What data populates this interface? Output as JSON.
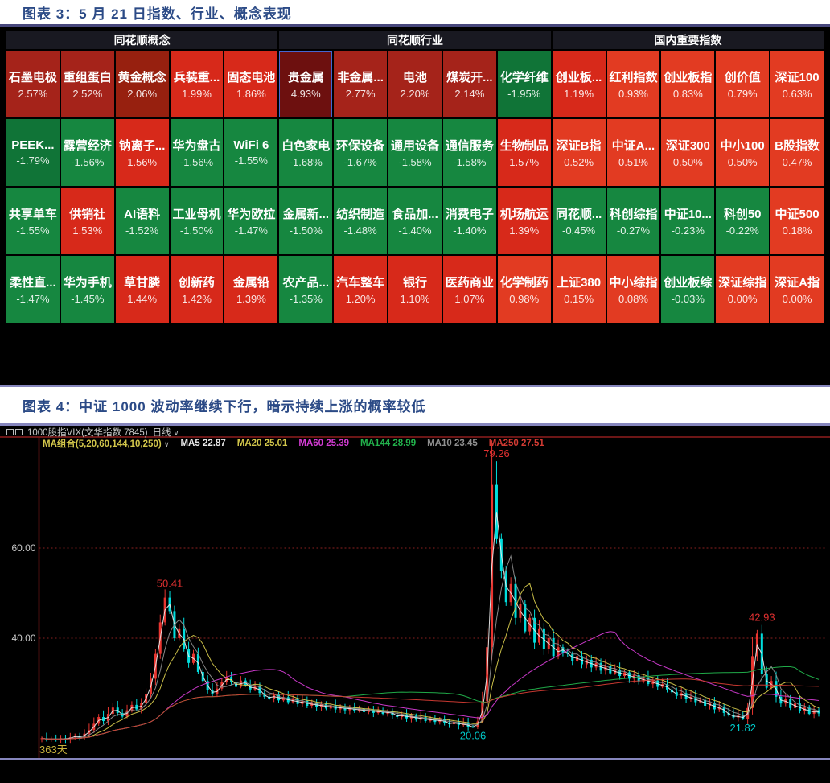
{
  "figure3": {
    "title": "图表 3：5 月 21 日指数、行业、概念表现"
  },
  "figure4": {
    "title": "图表 4：中证 1000 波动率继续下行，暗示持续上涨的概率较低"
  },
  "chart_data": [
    {
      "type": "heatmap",
      "groups": [
        {
          "header": "同花顺概念",
          "cells": [
            {
              "name": "石墨电极",
              "value": "2.57%",
              "color": "#a5231a"
            },
            {
              "name": "重组蛋白",
              "value": "2.52%",
              "color": "#a5231a"
            },
            {
              "name": "黄金概念",
              "value": "2.06%",
              "color": "#97200f"
            },
            {
              "name": "兵装重...",
              "value": "1.99%",
              "color": "#d7291a"
            },
            {
              "name": "固态电池",
              "value": "1.86%",
              "color": "#d7291a"
            },
            {
              "name": "PEEK...",
              "value": "-1.79%",
              "color": "#107437"
            },
            {
              "name": "露营经济",
              "value": "-1.56%",
              "color": "#168740"
            },
            {
              "name": "钠离子...",
              "value": "1.56%",
              "color": "#d7291a"
            },
            {
              "name": "华为盘古",
              "value": "-1.56%",
              "color": "#168740"
            },
            {
              "name": "WiFi 6",
              "value": "-1.55%",
              "color": "#168740"
            },
            {
              "name": "共享单车",
              "value": "-1.55%",
              "color": "#168740"
            },
            {
              "name": "供销社",
              "value": "1.53%",
              "color": "#d7291a"
            },
            {
              "name": "AI语料",
              "value": "-1.52%",
              "color": "#168740"
            },
            {
              "name": "工业母机",
              "value": "-1.50%",
              "color": "#168740"
            },
            {
              "name": "华为欧拉",
              "value": "-1.47%",
              "color": "#168740"
            },
            {
              "name": "柔性直...",
              "value": "-1.47%",
              "color": "#168740"
            },
            {
              "name": "华为手机",
              "value": "-1.45%",
              "color": "#168740"
            },
            {
              "name": "草甘膦",
              "value": "1.44%",
              "color": "#d7291a"
            },
            {
              "name": "创新药",
              "value": "1.42%",
              "color": "#d7291a"
            },
            {
              "name": "金属铅",
              "value": "1.39%",
              "color": "#d7291a"
            }
          ]
        },
        {
          "header": "同花顺行业",
          "cells": [
            {
              "name": "贵金属",
              "value": "4.93%",
              "color": "#6d100f",
              "selected": true
            },
            {
              "name": "非金属...",
              "value": "2.77%",
              "color": "#a5231a"
            },
            {
              "name": "电池",
              "value": "2.20%",
              "color": "#a5231a"
            },
            {
              "name": "煤炭开...",
              "value": "2.14%",
              "color": "#a5231a"
            },
            {
              "name": "化学纤维",
              "value": "-1.95%",
              "color": "#107437"
            },
            {
              "name": "白色家电",
              "value": "-1.68%",
              "color": "#168740"
            },
            {
              "name": "环保设备",
              "value": "-1.67%",
              "color": "#168740"
            },
            {
              "name": "通用设备",
              "value": "-1.58%",
              "color": "#168740"
            },
            {
              "name": "通信服务",
              "value": "-1.58%",
              "color": "#168740"
            },
            {
              "name": "生物制品",
              "value": "1.57%",
              "color": "#d7291a"
            },
            {
              "name": "金属新...",
              "value": "-1.50%",
              "color": "#168740"
            },
            {
              "name": "纺织制造",
              "value": "-1.48%",
              "color": "#168740"
            },
            {
              "name": "食品加...",
              "value": "-1.40%",
              "color": "#168740"
            },
            {
              "name": "消费电子",
              "value": "-1.40%",
              "color": "#168740"
            },
            {
              "name": "机场航运",
              "value": "1.39%",
              "color": "#d7291a"
            },
            {
              "name": "农产品...",
              "value": "-1.35%",
              "color": "#168740"
            },
            {
              "name": "汽车整车",
              "value": "1.20%",
              "color": "#d7291a"
            },
            {
              "name": "银行",
              "value": "1.10%",
              "color": "#d7291a"
            },
            {
              "name": "医药商业",
              "value": "1.07%",
              "color": "#d7291a"
            },
            {
              "name": "化学制药",
              "value": "0.98%",
              "color": "#e23b22"
            }
          ]
        },
        {
          "header": "国内重要指数",
          "cells": [
            {
              "name": "创业板...",
              "value": "1.19%",
              "color": "#d7291a"
            },
            {
              "name": "红利指数",
              "value": "0.93%",
              "color": "#e23b22"
            },
            {
              "name": "创业板指",
              "value": "0.83%",
              "color": "#e23b22"
            },
            {
              "name": "创价值",
              "value": "0.79%",
              "color": "#e23b22"
            },
            {
              "name": "深证100",
              "value": "0.63%",
              "color": "#e23b22"
            },
            {
              "name": "深证B指",
              "value": "0.52%",
              "color": "#e23b22"
            },
            {
              "name": "中证A...",
              "value": "0.51%",
              "color": "#e23b22"
            },
            {
              "name": "深证300",
              "value": "0.50%",
              "color": "#e23b22"
            },
            {
              "name": "中小100",
              "value": "0.50%",
              "color": "#e23b22"
            },
            {
              "name": "B股指数",
              "value": "0.47%",
              "color": "#e23b22"
            },
            {
              "name": "同花顺...",
              "value": "-0.45%",
              "color": "#168740"
            },
            {
              "name": "科创综指",
              "value": "-0.27%",
              "color": "#168740"
            },
            {
              "name": "中证10...",
              "value": "-0.23%",
              "color": "#168740"
            },
            {
              "name": "科创50",
              "value": "-0.22%",
              "color": "#168740"
            },
            {
              "name": "中证500",
              "value": "0.18%",
              "color": "#e23b22"
            },
            {
              "name": "上证380",
              "value": "0.15%",
              "color": "#e23b22"
            },
            {
              "name": "中小综指",
              "value": "0.08%",
              "color": "#e23b22"
            },
            {
              "name": "创业板综",
              "value": "-0.03%",
              "color": "#168740"
            },
            {
              "name": "深证综指",
              "value": "0.00%",
              "color": "#e23b22"
            },
            {
              "name": "深证A指",
              "value": "0.00%",
              "color": "#e23b22"
            }
          ]
        }
      ]
    },
    {
      "type": "candlestick",
      "instrument": "1000股指VIX(文华指数 7845)",
      "period": "日线",
      "ma_combo_label": "MA组合(5,20,60,144,10,250)",
      "ma_legend": [
        {
          "label": "MA5",
          "value": "22.87",
          "color": "#e8e8e8",
          "window": 5
        },
        {
          "label": "MA20",
          "value": "25.01",
          "color": "#d3c74b",
          "window": 20
        },
        {
          "label": "MA60",
          "value": "25.39",
          "color": "#d23bd2",
          "window": 60
        },
        {
          "label": "MA144",
          "value": "28.99",
          "color": "#22b24c",
          "window": 144
        },
        {
          "label": "MA10",
          "value": "23.45",
          "color": "#8f8f8f",
          "window": 10
        },
        {
          "label": "MA250",
          "value": "27.51",
          "color": "#d23b33",
          "window": 250
        }
      ],
      "y_ticks": [
        {
          "label": "60.00",
          "value": 60
        },
        {
          "label": "40.00",
          "value": 40
        }
      ],
      "x_label": "363天",
      "days_total": 363,
      "up_color": "#e83530",
      "down_color": "#00dede",
      "high_label_color": "#e03030",
      "low_label_color": "#00c9c9",
      "axis_text_color": "#c8c8c8",
      "frame_color": "#8f1d1d",
      "closes": [
        17.8,
        17.5,
        17.7,
        17.4,
        17.8,
        17.6,
        18.0,
        18.3,
        18.0,
        18.8,
        19.6,
        21.0,
        22.5,
        21.6,
        23.2,
        24.6,
        23.4,
        22.6,
        24.0,
        25.2,
        24.2,
        25.6,
        27.5,
        31.0,
        36.5,
        43.5,
        49.0,
        46.0,
        40.0,
        42.0,
        37.5,
        34.5,
        36.5,
        32.5,
        30.5,
        28.5,
        27.5,
        28.8,
        30.2,
        31.4,
        30.2,
        29.2,
        30.6,
        29.6,
        28.6,
        29.3,
        27.8,
        27.0,
        26.6,
        27.4,
        26.2,
        26.9,
        25.8,
        26.5,
        25.4,
        26.1,
        25.0,
        25.7,
        24.7,
        25.4,
        24.4,
        25.1,
        24.2,
        24.9,
        24.0,
        24.7,
        23.8,
        24.4,
        23.6,
        24.2,
        23.4,
        24.0,
        23.2,
        23.8,
        23.0,
        22.5,
        23.1,
        22.2,
        22.8,
        21.9,
        22.5,
        21.6,
        22.2,
        21.4,
        22.0,
        21.2,
        20.9,
        21.4,
        20.7,
        21.1,
        20.3,
        20.2,
        21.5,
        26.0,
        38.0,
        74.0,
        62.0,
        55.0,
        48.0,
        52.0,
        44.5,
        47.5,
        41.5,
        44.5,
        39.0,
        42.0,
        37.5,
        40.0,
        36.0,
        38.0,
        36.8,
        36.5,
        35.0,
        36.0,
        34.2,
        35.2,
        33.5,
        34.5,
        32.8,
        33.8,
        32.2,
        33.0,
        31.6,
        32.4,
        31.0,
        31.8,
        30.4,
        31.2,
        29.8,
        30.6,
        29.2,
        29.8,
        28.6,
        28.0,
        27.2,
        27.8,
        26.5,
        27.0,
        25.8,
        26.3,
        25.0,
        25.6,
        24.2,
        24.8,
        23.4,
        23.0,
        22.4,
        22.8,
        22.0,
        24.5,
        36.0,
        41.0,
        32.0,
        29.0,
        30.5,
        27.0,
        25.5,
        26.5,
        24.5,
        25.5,
        23.8,
        24.6,
        23.2,
        24.0,
        23.3
      ],
      "annotations": [
        {
          "label": "79.26",
          "day": 96,
          "value": 79.26,
          "type": "high"
        },
        {
          "label": "50.41",
          "day": 27,
          "value": 50.41,
          "type": "high"
        },
        {
          "label": "42.93",
          "day": 152,
          "value": 42.93,
          "type": "high"
        },
        {
          "label": "20.06",
          "day": 91,
          "value": 20.06,
          "type": "low"
        },
        {
          "label": "21.82",
          "day": 148,
          "value": 21.82,
          "type": "low"
        }
      ]
    }
  ]
}
